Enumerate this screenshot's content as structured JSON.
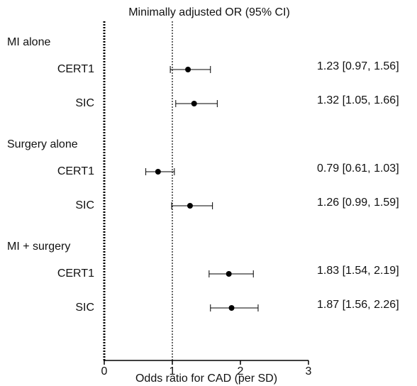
{
  "chart_data": {
    "type": "forest",
    "title": "Minimally adjusted OR (95% CI)",
    "xlabel": "Odds ratio for CAD (per SD)",
    "xlim": [
      0,
      3
    ],
    "xticks": [
      0,
      1,
      2,
      3
    ],
    "reference_line": 1,
    "color": "#000000",
    "groups": [
      {
        "name": "MI alone",
        "categories": [
          "CERT1",
          "SIC"
        ],
        "values": [
          1.23,
          1.32
        ],
        "lower": [
          0.97,
          1.05
        ],
        "upper": [
          1.56,
          1.66
        ],
        "value_labels": [
          "1.23 [0.97, 1.56]",
          "1.32 [1.05, 1.66]"
        ]
      },
      {
        "name": "Surgery alone",
        "categories": [
          "CERT1",
          "SIC"
        ],
        "values": [
          0.79,
          1.26
        ],
        "lower": [
          0.61,
          0.99
        ],
        "upper": [
          1.03,
          1.59
        ],
        "value_labels": [
          "0.79 [0.61, 1.03]",
          "1.26 [0.99, 1.59]"
        ]
      },
      {
        "name": "MI + surgery",
        "categories": [
          "CERT1",
          "SIC"
        ],
        "values": [
          1.83,
          1.87
        ],
        "lower": [
          1.54,
          1.56
        ],
        "upper": [
          2.19,
          2.26
        ],
        "value_labels": [
          "1.83 [1.54, 2.19]",
          "1.87 [1.56, 2.26]"
        ]
      }
    ]
  }
}
